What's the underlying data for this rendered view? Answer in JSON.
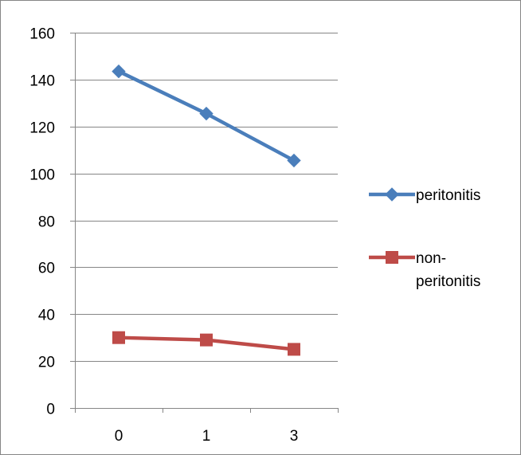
{
  "chart_data": {
    "type": "line",
    "categories": [
      "0",
      "1",
      "3"
    ],
    "series": [
      {
        "name": "peritonitis",
        "values": [
          143.5,
          125.5,
          105.5
        ],
        "color": "#4a7ebb",
        "marker": "diamond"
      },
      {
        "name": "non-peritonitis",
        "values": [
          30,
          29,
          25
        ],
        "color": "#be4b48",
        "marker": "square"
      }
    ],
    "ylim": [
      0,
      160
    ],
    "yticks": [
      "0",
      "20",
      "40",
      "60",
      "80",
      "100",
      "120",
      "140",
      "160"
    ],
    "grid": true,
    "legend": "right",
    "title": "",
    "xlabel": "",
    "ylabel": ""
  }
}
